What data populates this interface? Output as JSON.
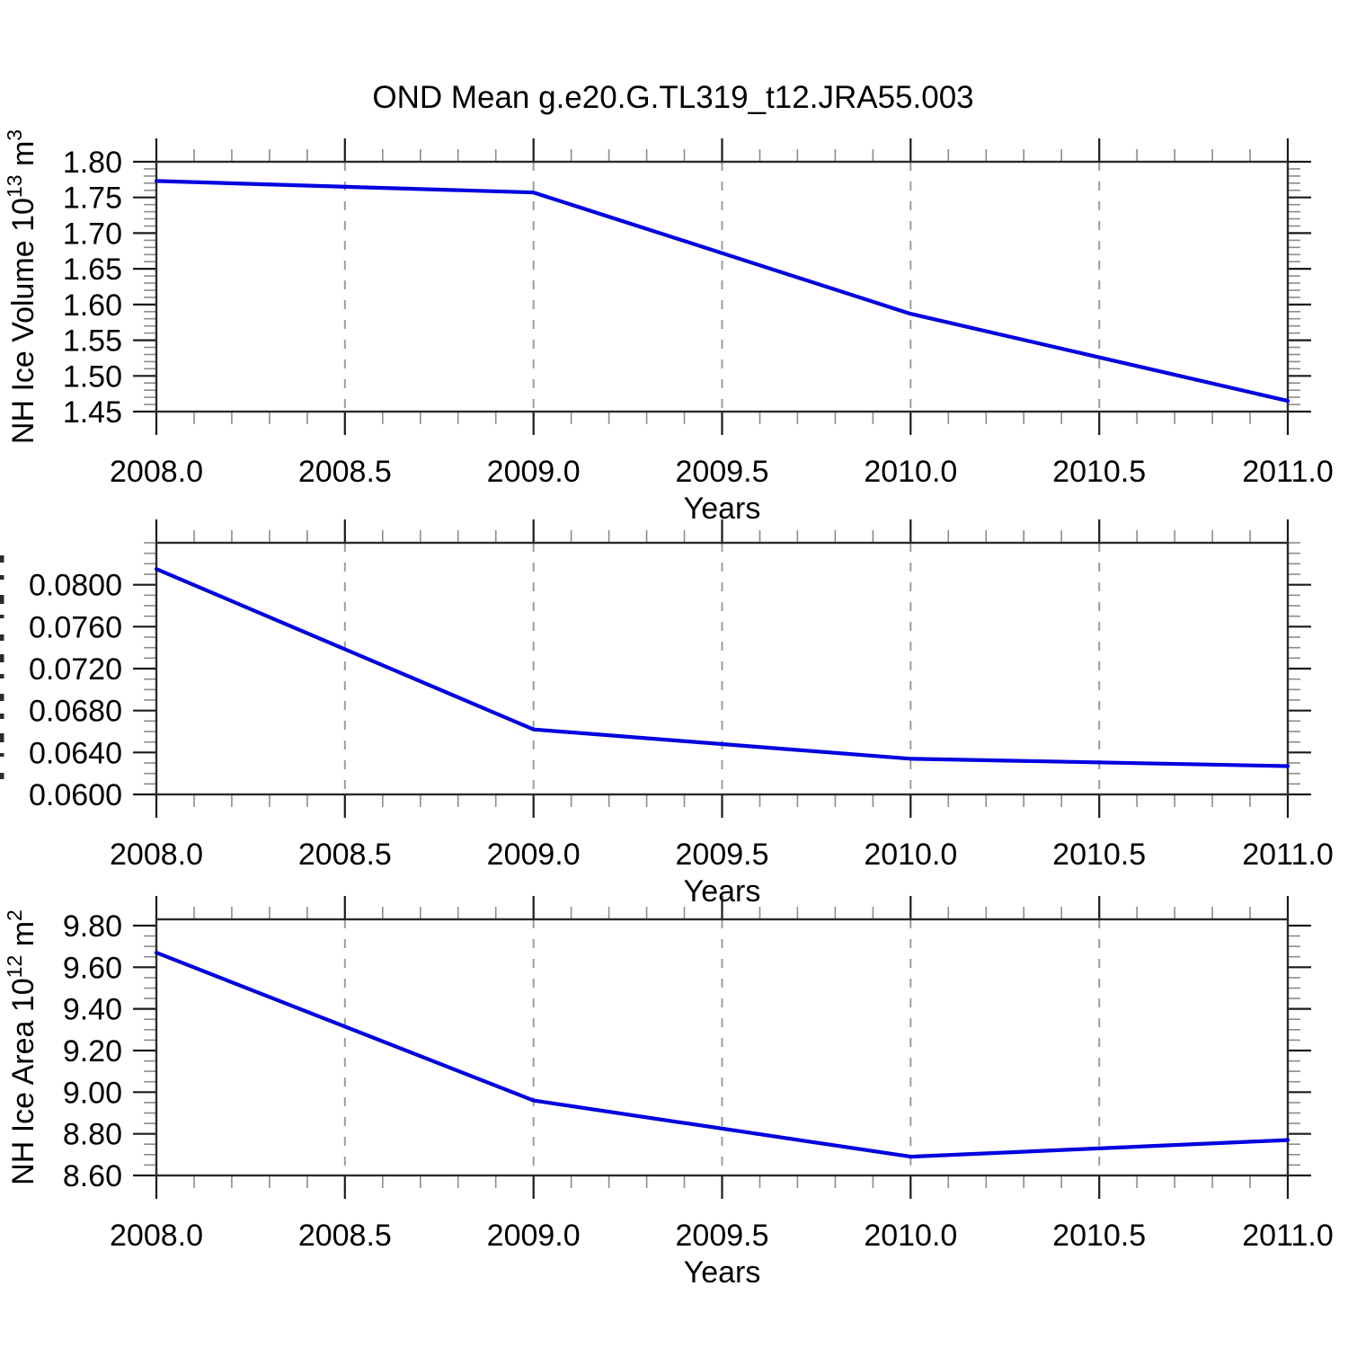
{
  "title": "OND Mean g.e20.G.TL319_t12.JRA55.003",
  "figure": {
    "line_color": "#0000e0",
    "grid_color": "#9c9c9c",
    "frame_color": "#2b2b2b",
    "minor_tick_color": "#8c8c8c",
    "major_tick_color": "#1a1a1a"
  },
  "x_axis": {
    "min": 2008.0,
    "max": 2011.0,
    "major_tick_step": 0.5,
    "minor_tick_step": 0.1,
    "major_tick_labels": [
      "2008.0",
      "2008.5",
      "2009.0",
      "2009.5",
      "2010.0",
      "2010.5",
      "2011.0"
    ],
    "gridlines_at": [
      2008.5,
      2009.0,
      2009.5,
      2010.0,
      2010.5
    ]
  },
  "chart_data": [
    {
      "type": "line",
      "panel": "nh-ice-volume",
      "title": "",
      "xlabel": "Years",
      "ylabel": "NH Ice Volume 10^13 m^3",
      "ylabel_rich": [
        {
          "t": "NH Ice Volume 10"
        },
        {
          "t": "13",
          "sup": true
        },
        {
          "t": " m"
        },
        {
          "t": "3",
          "sup": true
        }
      ],
      "x": [
        2008.0,
        2009.0,
        2010.0,
        2011.0
      ],
      "values": [
        1.773,
        1.757,
        1.587,
        1.465
      ],
      "ylim": [
        1.45,
        1.8
      ],
      "ytick_values": [
        1.8,
        1.75,
        1.7,
        1.65,
        1.6,
        1.55,
        1.5,
        1.45
      ],
      "ytick_labels": [
        "1.80",
        "1.75",
        "1.70",
        "1.65",
        "1.60",
        "1.55",
        "1.50",
        "1.45"
      ],
      "yminor_step": 0.01,
      "grid": true,
      "legend": "none"
    },
    {
      "type": "line",
      "panel": "middle-clipped-label",
      "title": "",
      "xlabel": "Years",
      "ylabel": "",
      "ylabel_clipped": true,
      "x": [
        2008.0,
        2009.0,
        2010.0,
        2011.0
      ],
      "values": [
        0.0815,
        0.0662,
        0.0634,
        0.0627
      ],
      "ylim": [
        0.06,
        0.084
      ],
      "ytick_values": [
        0.08,
        0.076,
        0.072,
        0.068,
        0.064,
        0.06
      ],
      "ytick_labels": [
        "0.0800",
        "0.0760",
        "0.0720",
        "0.0680",
        "0.0640",
        "0.0600"
      ],
      "yminor_step": 0.001,
      "grid": true,
      "legend": "none"
    },
    {
      "type": "line",
      "panel": "nh-ice-area",
      "title": "",
      "xlabel": "Years",
      "ylabel": "NH Ice Area 10^12 m^2",
      "ylabel_rich": [
        {
          "t": "NH Ice Area 10"
        },
        {
          "t": "12",
          "sup": true
        },
        {
          "t": " m"
        },
        {
          "t": "2",
          "sup": true
        }
      ],
      "x": [
        2008.0,
        2009.0,
        2010.0,
        2011.0
      ],
      "values": [
        9.67,
        8.96,
        8.69,
        8.77
      ],
      "ylim": [
        8.6,
        9.83
      ],
      "ytick_values": [
        9.8,
        9.6,
        9.4,
        9.2,
        9.0,
        8.8,
        8.6
      ],
      "ytick_labels": [
        "9.80",
        "9.60",
        "9.40",
        "9.20",
        "9.00",
        "8.80",
        "8.60"
      ],
      "yminor_step": 0.05,
      "grid": true,
      "legend": "none"
    }
  ]
}
